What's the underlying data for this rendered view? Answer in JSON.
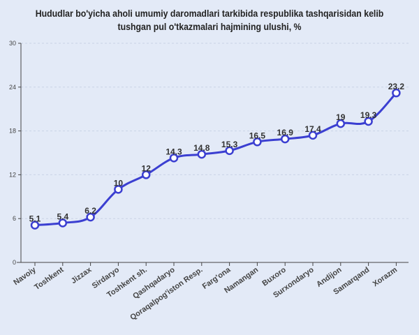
{
  "chart_data": {
    "type": "line",
    "title_line1": "Hududlar bo'yicha aholi umumiy daromadlari tarkibida respublika tashqarisidan kelib",
    "title_line2": "tushgan pul o'tkazmalari hajmining ulushi, %",
    "categories": [
      "Navoiy",
      "Toshkent",
      "Jizzax",
      "Sirdaryo",
      "Toshkent sh.",
      "Qashqadaryo",
      "Qoraqalpog'iston Resp.",
      "Farg'ona",
      "Namangan",
      "Buxoro",
      "Surxondaryo",
      "Andijon",
      "Samarqand",
      "Xorazm"
    ],
    "values": [
      5.1,
      5.4,
      6.2,
      10,
      12,
      14.3,
      14.8,
      15.3,
      16.5,
      16.9,
      17.4,
      19,
      19.3,
      23.2
    ],
    "labels": [
      "5.1",
      "5.4",
      "6.2",
      "10",
      "12",
      "14.3",
      "14.8",
      "15.3",
      "16.5",
      "16.9",
      "17.4",
      "19",
      "19.3",
      "23.2"
    ],
    "yticks": [
      "0",
      "6",
      "12",
      "18",
      "24",
      "30"
    ],
    "ylim": [
      0,
      30
    ],
    "xlabel": "",
    "ylabel": "",
    "grid": true,
    "line_color": "#3b3fd1"
  }
}
